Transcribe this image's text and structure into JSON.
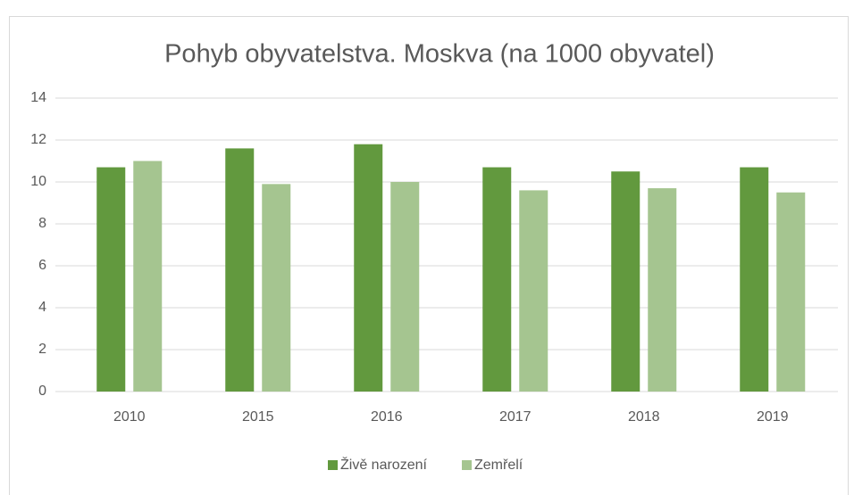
{
  "chart_data": {
    "type": "bar",
    "title": "Pohyb obyvatelstva. Moskva (na 1000 obyvatel)",
    "categories": [
      "2010",
      "2015",
      "2016",
      "2017",
      "2018",
      "2019"
    ],
    "series": [
      {
        "name": "Živě narození",
        "color": "#62993e",
        "values": [
          10.7,
          11.6,
          11.8,
          10.7,
          10.5,
          10.7
        ]
      },
      {
        "name": "Zemřelí",
        "color": "#a5c590",
        "values": [
          11.0,
          9.9,
          10.0,
          9.6,
          9.7,
          9.5
        ]
      }
    ],
    "ylim": [
      0,
      14
    ],
    "yticks": [
      0,
      2,
      4,
      6,
      8,
      10,
      12,
      14
    ],
    "grid": true,
    "legend": "bottom"
  }
}
